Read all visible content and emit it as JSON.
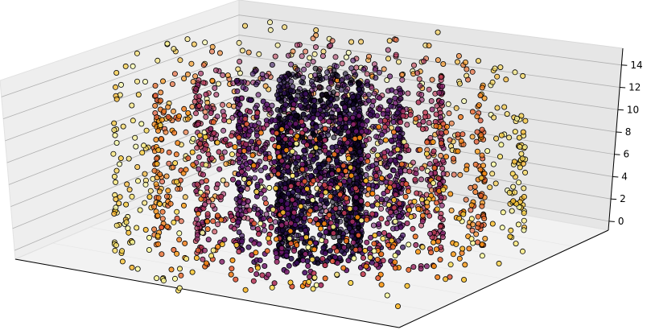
{
  "chart_data": {
    "type": "scatter",
    "projection": "3d",
    "title": "",
    "xlabel": "",
    "ylabel": "",
    "zlabel": "",
    "x_ticks_visible": false,
    "y_ticks_visible": false,
    "z_ticks": [
      "0",
      "2",
      "4",
      "6",
      "8",
      "10",
      "12",
      "14"
    ],
    "zlim": [
      -0.8,
      15.5
    ],
    "grid": true,
    "legend": "none",
    "colormap": "inferno",
    "marker_edge": "#000000",
    "description_of_data": "points lie on concentric vertical cylinders; color encodes radius",
    "series": [
      {
        "radius": 1.0,
        "n": 1000,
        "z_range": [
          0,
          15
        ],
        "colormap_value": 0.1
      },
      {
        "radius": 2.0,
        "n": 700,
        "z_range": [
          0,
          15
        ],
        "colormap_value": 0.25
      },
      {
        "radius": 3.0,
        "n": 650,
        "z_range": [
          0,
          15
        ],
        "colormap_value": 0.45
      },
      {
        "radius": 4.0,
        "n": 500,
        "z_range": [
          0,
          15
        ],
        "colormap_value": 0.7
      },
      {
        "radius": 5.0,
        "n": 420,
        "z_range": [
          0,
          15
        ],
        "colormap_value": 0.92
      }
    ]
  }
}
